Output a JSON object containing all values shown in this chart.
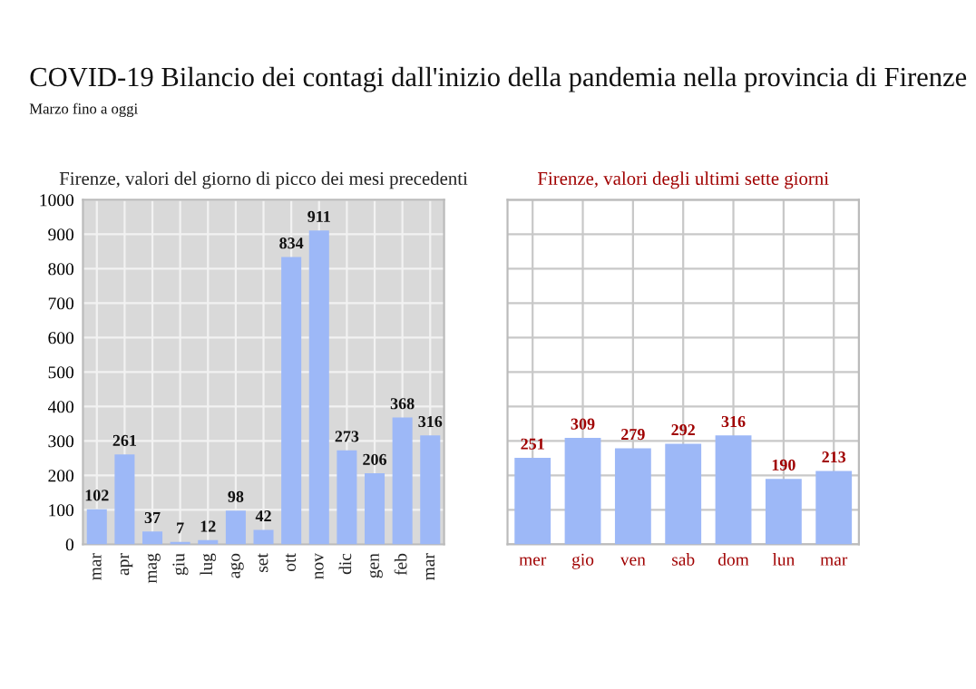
{
  "chart_data": [
    {
      "type": "bar",
      "title": "COVID-19 Bilancio dei contagi dall'inizio della pandemia nella provincia di Firenze",
      "subtitle": "Marzo fino a oggi",
      "annotations": [
        "Firenze, valori del giorno di picco dei mesi precedenti"
      ],
      "categories": [
        "mar",
        "apr",
        "mag",
        "giu",
        "lug",
        "ago",
        "set",
        "ott",
        "nov",
        "dic",
        "gen",
        "feb",
        "mar"
      ],
      "values": [
        102,
        261,
        37,
        7,
        12,
        98,
        42,
        834,
        911,
        273,
        206,
        368,
        316
      ],
      "color": "#9db8f7",
      "ylim": [
        0,
        1000
      ],
      "yticks": [
        0,
        100,
        200,
        300,
        400,
        500,
        600,
        700,
        800,
        900,
        1000
      ],
      "grid": true,
      "data_labels": true
    },
    {
      "type": "bar",
      "title": "Firenze, valori degli ultimi sette giorni",
      "categories": [
        "mer",
        "gio",
        "ven",
        "sab",
        "dom",
        "lun",
        "mar"
      ],
      "values": [
        251,
        309,
        279,
        292,
        316,
        190,
        213
      ],
      "color": "#9db8f7",
      "ylim": [
        0,
        1000
      ],
      "yticks": [
        {
          "value": 0,
          "label": null
        },
        {
          "value": 100,
          "label": null
        },
        {
          "value": 200,
          "label": null
        },
        {
          "value": 300,
          "label": null
        },
        {
          "value": 400,
          "label": null
        },
        {
          "value": 500,
          "label": null
        },
        {
          "value": 600,
          "label": null
        },
        {
          "value": 700,
          "label": null
        },
        {
          "value": 800,
          "label": null
        },
        {
          "value": 900,
          "label": null
        },
        {
          "value": 1000,
          "label": null
        }
      ],
      "tick_labels": "x",
      "grid": true,
      "data_labels": true
    }
  ]
}
